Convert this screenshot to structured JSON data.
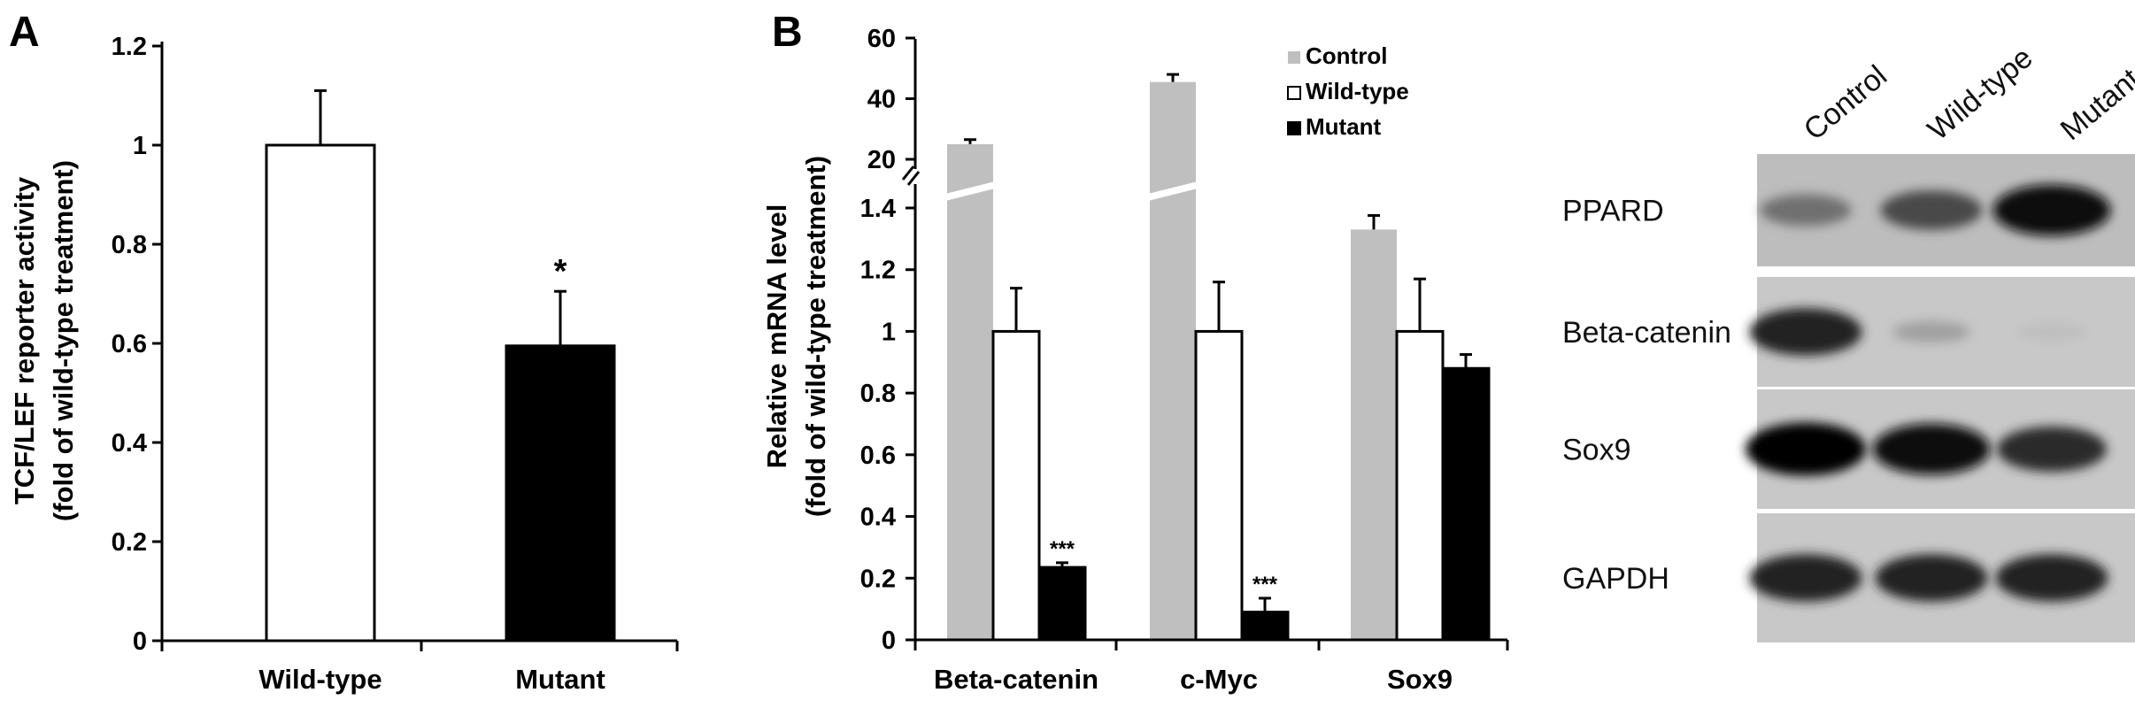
{
  "panel_labels": [
    "A",
    "B"
  ],
  "chart_data": [
    {
      "panel": "A",
      "type": "bar",
      "categories": [
        "Wild-type",
        "Mutant"
      ],
      "values": [
        1.0,
        0.595
      ],
      "errors": [
        0.11,
        0.11
      ],
      "fills": [
        "#ffffff",
        "#000000"
      ],
      "significance": [
        "",
        "*"
      ],
      "ylabel_line1": "TCF/LEF reporter activity",
      "ylabel_line2": "(fold of wild-type treatment)",
      "ylim": [
        0,
        1.2
      ],
      "yticks": [
        0,
        0.2,
        0.4,
        0.6,
        0.8,
        1,
        1.2
      ],
      "ytick_labels": [
        "0",
        "0.2",
        "0.4",
        "0.6",
        "0.8",
        "1",
        "1.2"
      ],
      "grid": false
    },
    {
      "panel": "B",
      "type": "bar",
      "categories": [
        "Beta-catenin",
        "c-Myc",
        "Sox9"
      ],
      "series": [
        {
          "name": "Control",
          "color": "#bfbfbf",
          "values": [
            25,
            45.5,
            1.33
          ],
          "errors": [
            1.5,
            2.5,
            0.14
          ],
          "significance": [
            "",
            "",
            ""
          ]
        },
        {
          "name": "Wild-type",
          "color": "#ffffff",
          "values": [
            1.0,
            1.0,
            1.0
          ],
          "errors": [
            0.14,
            0.16,
            0.17
          ],
          "significance": [
            "",
            "",
            ""
          ]
        },
        {
          "name": "Mutant",
          "color": "#000000",
          "values": [
            0.235,
            0.09,
            0.88
          ],
          "errors": [
            0.015,
            0.045,
            0.045
          ],
          "significance": [
            "***",
            "***",
            ""
          ]
        }
      ],
      "ylabel_line1": "Relative mRNA level",
      "ylabel_line2": "(fold of wild-type treatment)",
      "axis_break": {
        "lower_ylim": [
          0,
          1.4
        ],
        "upper_ylim": [
          20,
          60
        ]
      },
      "yticks_lower": [
        0,
        0.2,
        0.4,
        0.6,
        0.8,
        1,
        1.2,
        1.4
      ],
      "ytick_labels_lower": [
        "0",
        "0.2",
        "0.4",
        "0.6",
        "0.8",
        "1",
        "1.2",
        "1.4"
      ],
      "yticks_upper": [
        20,
        40,
        60
      ],
      "ytick_labels_upper": [
        "20",
        "40",
        "60"
      ],
      "legend_placement": "top-center",
      "grid": false
    }
  ],
  "western_blot": {
    "lanes": [
      "Control",
      "Wild-type",
      "Mutant"
    ],
    "rows": [
      {
        "label": "PPARD",
        "band_intensity": [
          0.45,
          0.65,
          0.95
        ]
      },
      {
        "label": "Beta-catenin",
        "band_intensity": [
          0.85,
          0.2,
          0.05
        ]
      },
      {
        "label": "Sox9",
        "band_intensity": [
          1.0,
          0.95,
          0.8
        ]
      },
      {
        "label": "GAPDH",
        "band_intensity": [
          0.85,
          0.85,
          0.85
        ]
      }
    ]
  }
}
